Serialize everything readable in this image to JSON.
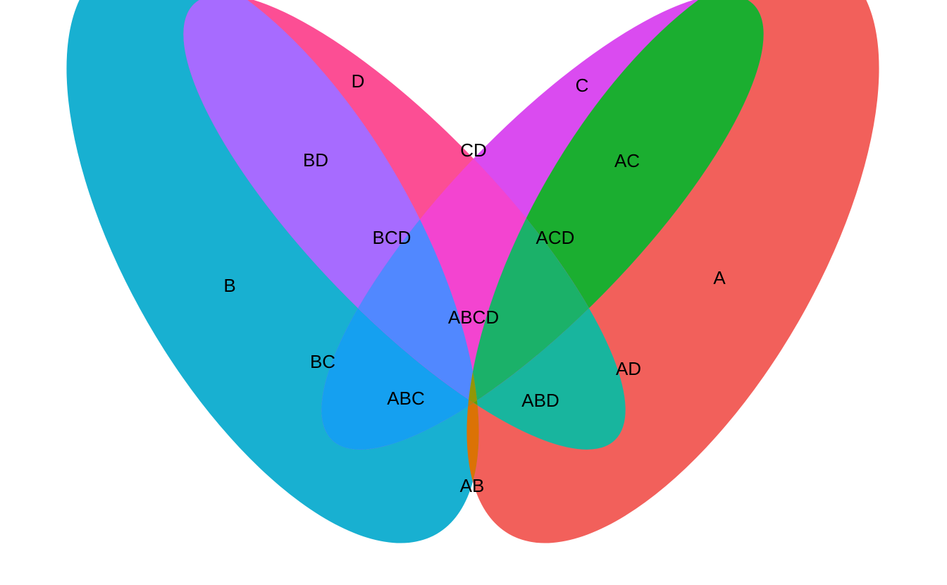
{
  "diagram": {
    "type": "venn",
    "sets": [
      "A",
      "B",
      "C",
      "D"
    ],
    "regions": [
      {
        "id": "A",
        "label": "A",
        "color": "#F2605B"
      },
      {
        "id": "B",
        "label": "B",
        "color": "#18B0D1"
      },
      {
        "id": "C",
        "label": "C",
        "color": "#DA4BF0"
      },
      {
        "id": "D",
        "label": "D",
        "color": "#FC4E94"
      },
      {
        "id": "AB",
        "label": "AB",
        "color": "#DB7205"
      },
      {
        "id": "AC",
        "label": "AC",
        "color": "#1BAE30"
      },
      {
        "id": "AD",
        "label": "AD",
        "color": "#18B59E"
      },
      {
        "id": "BC",
        "label": "BC",
        "color": "#15A0F0"
      },
      {
        "id": "BD",
        "label": "BD",
        "color": "#A76BFF"
      },
      {
        "id": "CD",
        "label": "CD",
        "color": "#F344D0"
      },
      {
        "id": "ABC",
        "label": "ABC",
        "color": "#BC8106"
      },
      {
        "id": "ABD",
        "label": "ABD",
        "color": "#5CA505"
      },
      {
        "id": "ACD",
        "label": "ACD",
        "color": "#1BB169"
      },
      {
        "id": "BCD",
        "label": "BCD",
        "color": "#5188FF"
      },
      {
        "id": "ABCD",
        "label": "ABCD",
        "color": "#929606"
      }
    ]
  }
}
